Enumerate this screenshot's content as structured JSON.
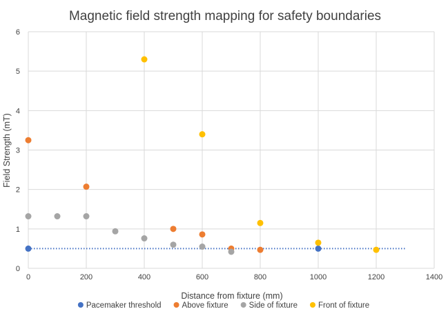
{
  "chart_data": {
    "type": "scatter",
    "title": "Magnetic field strength mapping for safety boundaries",
    "xlabel": "Distance from fixture (mm)",
    "ylabel": "Field Strength (mT)",
    "xlim": [
      0,
      1400
    ],
    "ylim": [
      0,
      6
    ],
    "xticks": [
      "0",
      "200",
      "400",
      "600",
      "800",
      "1000",
      "1200",
      "1400"
    ],
    "yticks": [
      "0",
      "1",
      "2",
      "3",
      "4",
      "5",
      "6"
    ],
    "grid": true,
    "legend_position": "bottom",
    "threshold_line": {
      "y": 0.5,
      "x": [
        0,
        1300
      ],
      "style": "dotted",
      "color": "#4472c4"
    },
    "series": [
      {
        "name": "Pacemaker threshold",
        "color": "#4472c4",
        "points": [
          {
            "x": 0,
            "y": 0.5
          },
          {
            "x": 1000,
            "y": 0.5
          }
        ]
      },
      {
        "name": "Above fixture",
        "color": "#ed7d31",
        "points": [
          {
            "x": 0,
            "y": 3.25
          },
          {
            "x": 200,
            "y": 2.07
          },
          {
            "x": 500,
            "y": 1.0
          },
          {
            "x": 600,
            "y": 0.86
          },
          {
            "x": 700,
            "y": 0.5
          },
          {
            "x": 800,
            "y": 0.47
          }
        ]
      },
      {
        "name": "Side of fixture",
        "color": "#a5a5a5",
        "points": [
          {
            "x": 0,
            "y": 1.32
          },
          {
            "x": 100,
            "y": 1.32
          },
          {
            "x": 200,
            "y": 1.32
          },
          {
            "x": 300,
            "y": 0.94
          },
          {
            "x": 400,
            "y": 0.76
          },
          {
            "x": 500,
            "y": 0.6
          },
          {
            "x": 600,
            "y": 0.55
          },
          {
            "x": 700,
            "y": 0.42
          }
        ]
      },
      {
        "name": "Front of fixture",
        "color": "#ffc000",
        "points": [
          {
            "x": 400,
            "y": 5.3
          },
          {
            "x": 600,
            "y": 3.4
          },
          {
            "x": 800,
            "y": 1.15
          },
          {
            "x": 1000,
            "y": 0.65
          },
          {
            "x": 1200,
            "y": 0.47
          }
        ]
      }
    ]
  }
}
